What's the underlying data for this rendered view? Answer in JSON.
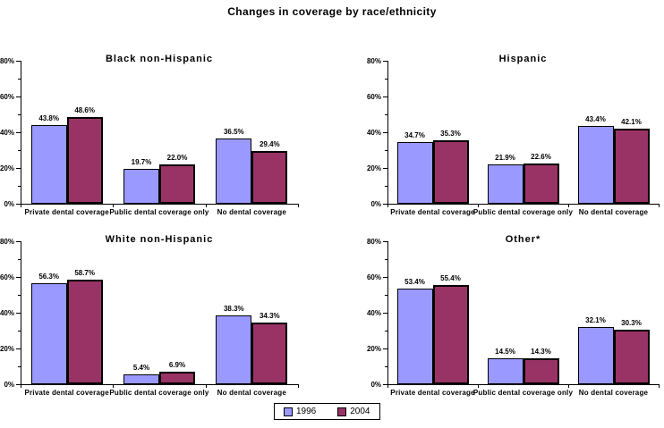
{
  "page": {
    "title": "Changes in coverage by race/ethnicity",
    "background": "#ffffff"
  },
  "colors": {
    "series_1996": "#9999ff",
    "series_2004": "#993366",
    "bar_border": "#000000",
    "axis": "#000000",
    "text": "#000000"
  },
  "legend": {
    "items": [
      {
        "label": "1996",
        "color": "#9999ff"
      },
      {
        "label": "2004",
        "color": "#993366"
      }
    ]
  },
  "chart_data": [
    {
      "type": "bar",
      "title": "Black non-Hispanic",
      "categories": [
        "Private dental coverage",
        "Public dental coverage only",
        "No dental coverage"
      ],
      "series": [
        {
          "name": "1996",
          "values": [
            43.8,
            19.7,
            36.5
          ]
        },
        {
          "name": "2004",
          "values": [
            48.6,
            22.0,
            29.4
          ]
        }
      ],
      "ylim": [
        0,
        80
      ],
      "yticks": [
        0,
        20,
        40,
        60,
        80
      ],
      "ytick_format": "percent",
      "grid": false,
      "data_labels": true
    },
    {
      "type": "bar",
      "title": "Hispanic",
      "categories": [
        "Private dental coverage",
        "Public dental coverage only",
        "No dental coverage"
      ],
      "series": [
        {
          "name": "1996",
          "values": [
            34.7,
            21.9,
            43.4
          ]
        },
        {
          "name": "2004",
          "values": [
            35.3,
            22.6,
            42.1
          ]
        }
      ],
      "ylim": [
        0,
        80
      ],
      "yticks": [
        0,
        20,
        40,
        60,
        80
      ],
      "ytick_format": "percent",
      "grid": false,
      "data_labels": true
    },
    {
      "type": "bar",
      "title": "White non-Hispanic",
      "categories": [
        "Private dental coverage",
        "Public dental coverage only",
        "No dental coverage"
      ],
      "series": [
        {
          "name": "1996",
          "values": [
            56.3,
            5.4,
            38.3
          ]
        },
        {
          "name": "2004",
          "values": [
            58.7,
            6.9,
            34.3
          ]
        }
      ],
      "ylim": [
        0,
        80
      ],
      "yticks": [
        0,
        20,
        40,
        60,
        80
      ],
      "ytick_format": "percent",
      "grid": false,
      "data_labels": true
    },
    {
      "type": "bar",
      "title": "Other*",
      "categories": [
        "Private dental coverage",
        "Public dental coverage only",
        "No dental coverage"
      ],
      "series": [
        {
          "name": "1996",
          "values": [
            53.4,
            14.5,
            32.1
          ]
        },
        {
          "name": "2004",
          "values": [
            55.4,
            14.3,
            30.3
          ]
        }
      ],
      "ylim": [
        0,
        80
      ],
      "yticks": [
        0,
        20,
        40,
        60,
        80
      ],
      "ytick_format": "percent",
      "grid": false,
      "data_labels": true
    }
  ]
}
